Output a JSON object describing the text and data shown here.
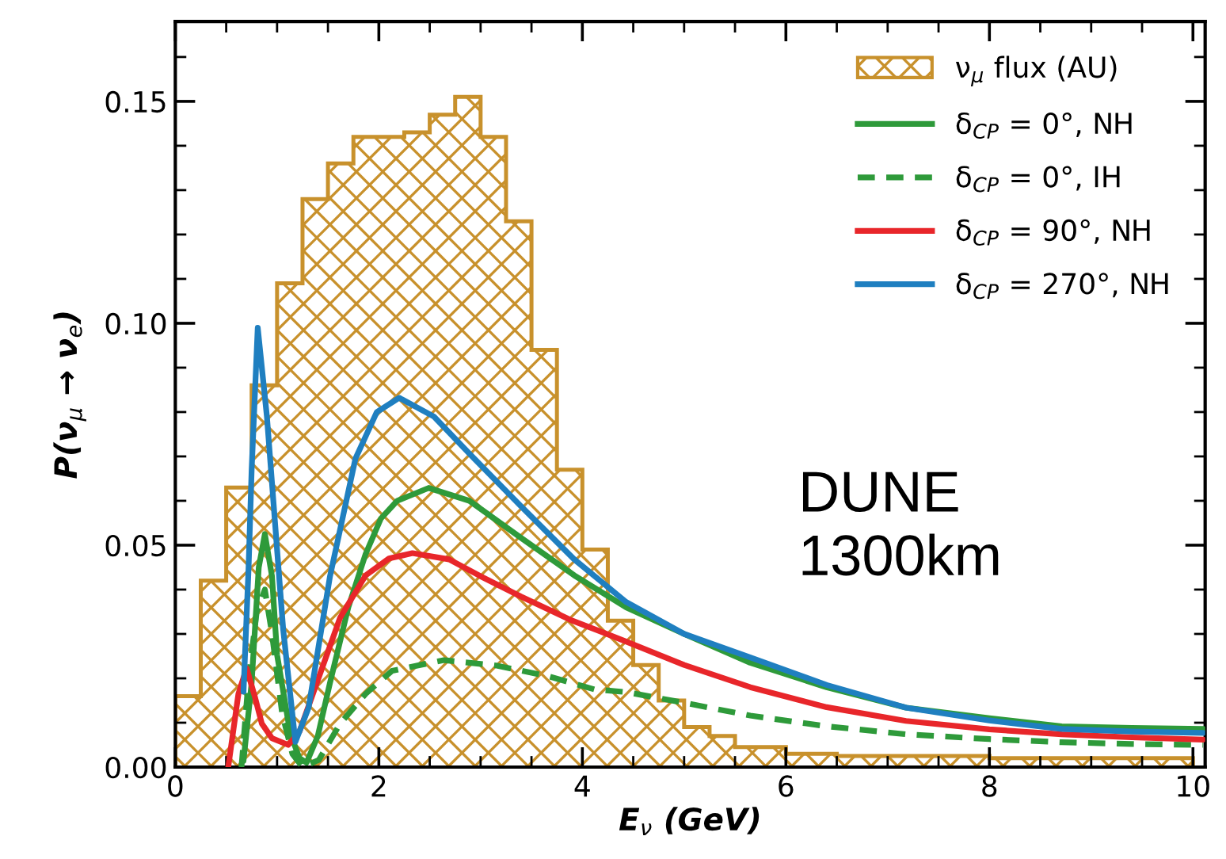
{
  "chart_data": {
    "type": "line",
    "xlabel": "E$_{ν}$ (GeV)",
    "ylabel": "P(ν$_{μ}$ → ν$_{e}$)",
    "xlim": [
      0,
      10.12
    ],
    "ylim": [
      0,
      0.168
    ],
    "xticks": [
      0,
      2,
      4,
      6,
      8,
      10
    ],
    "yticks": [
      {
        "value": 0,
        "label": "0.00"
      },
      {
        "value": 0.05,
        "label": "0.05"
      },
      {
        "value": 0.1,
        "label": "0.10"
      },
      {
        "value": 0.15,
        "label": "0.15"
      }
    ],
    "grid": false,
    "legend": "top right",
    "annotations": [
      "DUNE\n1300km"
    ],
    "series": [
      {
        "name": "ν$_{μ}$ flux (AU)",
        "type": "histogram",
        "color": "#c8912c",
        "bins": [
          0,
          0.25,
          0.5,
          0.75,
          1.0,
          1.25,
          1.5,
          1.75,
          2.0,
          2.25,
          2.5,
          2.75,
          3.0,
          3.25,
          3.5,
          3.75,
          4.0,
          4.25,
          4.5,
          4.75,
          5.0,
          5.25,
          5.5,
          5.75,
          6.0,
          6.25,
          6.5,
          6.75,
          7.0,
          7.25,
          7.5,
          7.75,
          8.0,
          8.25,
          8.5,
          8.75,
          9.0,
          9.25,
          9.5,
          9.75,
          10.0
        ],
        "values": [
          0.016,
          0.042,
          0.063,
          0.086,
          0.109,
          0.128,
          0.136,
          0.142,
          0.142,
          0.143,
          0.147,
          0.151,
          0.142,
          0.123,
          0.094,
          0.067,
          0.049,
          0.033,
          0.023,
          0.015,
          0.009,
          0.007,
          0.0045,
          0.0045,
          0.003,
          0.003,
          0.0025,
          0.0025,
          0.0025,
          0.0025,
          0.0025,
          0.0025,
          0.002,
          0.002,
          0.002,
          0.002,
          0.002,
          0.002,
          0.002,
          0.002
        ]
      },
      {
        "name": "δ$_{CP}$ = 0°, NH",
        "color": "#2e9a3a",
        "line_style": "solid",
        "x": [
          0.67,
          0.75,
          0.82,
          0.88,
          0.95,
          1.0,
          1.13,
          1.22,
          1.29,
          1.4,
          1.52,
          1.7,
          1.87,
          2.02,
          2.18,
          2.49,
          2.89,
          3.4,
          3.92,
          4.43,
          5.0,
          5.65,
          6.4,
          7.18,
          8.0,
          8.71,
          9.4,
          10.1
        ],
        "values": [
          0.0014,
          0.019,
          0.045,
          0.0525,
          0.043,
          0.0253,
          0.0075,
          0.002,
          0.001,
          0.007,
          0.019,
          0.036,
          0.048,
          0.056,
          0.06,
          0.0629,
          0.06,
          0.0516,
          0.0432,
          0.036,
          0.03,
          0.0235,
          0.018,
          0.0134,
          0.011,
          0.0092,
          0.0088,
          0.0086
        ]
      },
      {
        "name": "δ$_{CP}$ = 0°, IH",
        "color": "#2e9a3a",
        "line_style": "dashed",
        "x": [
          0.65,
          0.72,
          0.8,
          0.88,
          0.95,
          1.05,
          1.15,
          1.25,
          1.41,
          1.62,
          1.87,
          2.13,
          2.64,
          3.15,
          3.66,
          4.12,
          4.43,
          5.0,
          5.65,
          6.4,
          7.18,
          8.0,
          8.71,
          9.4,
          10.1
        ],
        "values": [
          0.0,
          0.02,
          0.035,
          0.04,
          0.03,
          0.012,
          0.003,
          0.0,
          0.0016,
          0.0098,
          0.0165,
          0.0217,
          0.0241,
          0.0229,
          0.0205,
          0.0175,
          0.0169,
          0.0145,
          0.0116,
          0.0092,
          0.0074,
          0.0063,
          0.0056,
          0.0052,
          0.005
        ]
      },
      {
        "name": "δ$_{CP}$ = 90°, NH",
        "color": "#e8262a",
        "line_style": "solid",
        "x": [
          0.52,
          0.62,
          0.7,
          0.78,
          0.85,
          0.95,
          1.11,
          1.22,
          1.36,
          1.62,
          1.87,
          2.1,
          2.33,
          2.69,
          3.0,
          3.4,
          3.9,
          4.43,
          5.0,
          5.65,
          6.4,
          7.18,
          8.0,
          8.71,
          9.4,
          10.1
        ],
        "values": [
          0.0,
          0.0165,
          0.0223,
          0.016,
          0.0098,
          0.0065,
          0.005,
          0.008,
          0.017,
          0.0337,
          0.0432,
          0.047,
          0.0482,
          0.0468,
          0.043,
          0.0384,
          0.033,
          0.0283,
          0.023,
          0.018,
          0.0135,
          0.0104,
          0.0085,
          0.0074,
          0.0067,
          0.0062
        ]
      },
      {
        "name": "δ$_{CP}$ = 270°, NH",
        "color": "#1f7fc0",
        "line_style": "solid",
        "x": [
          0.67,
          0.72,
          0.75,
          0.81,
          0.9,
          1.06,
          1.18,
          1.31,
          1.52,
          1.77,
          1.98,
          2.2,
          2.54,
          2.89,
          3.4,
          3.92,
          4.43,
          5.0,
          5.65,
          6.4,
          7.18,
          8.0,
          8.71,
          9.4,
          10.1
        ],
        "values": [
          0.017,
          0.045,
          0.067,
          0.099,
          0.079,
          0.031,
          0.0057,
          0.0134,
          0.043,
          0.0695,
          0.08,
          0.0832,
          0.079,
          0.0706,
          0.0587,
          0.0468,
          0.0372,
          0.03,
          0.0247,
          0.0185,
          0.0134,
          0.0105,
          0.0086,
          0.008,
          0.0077
        ]
      }
    ]
  }
}
